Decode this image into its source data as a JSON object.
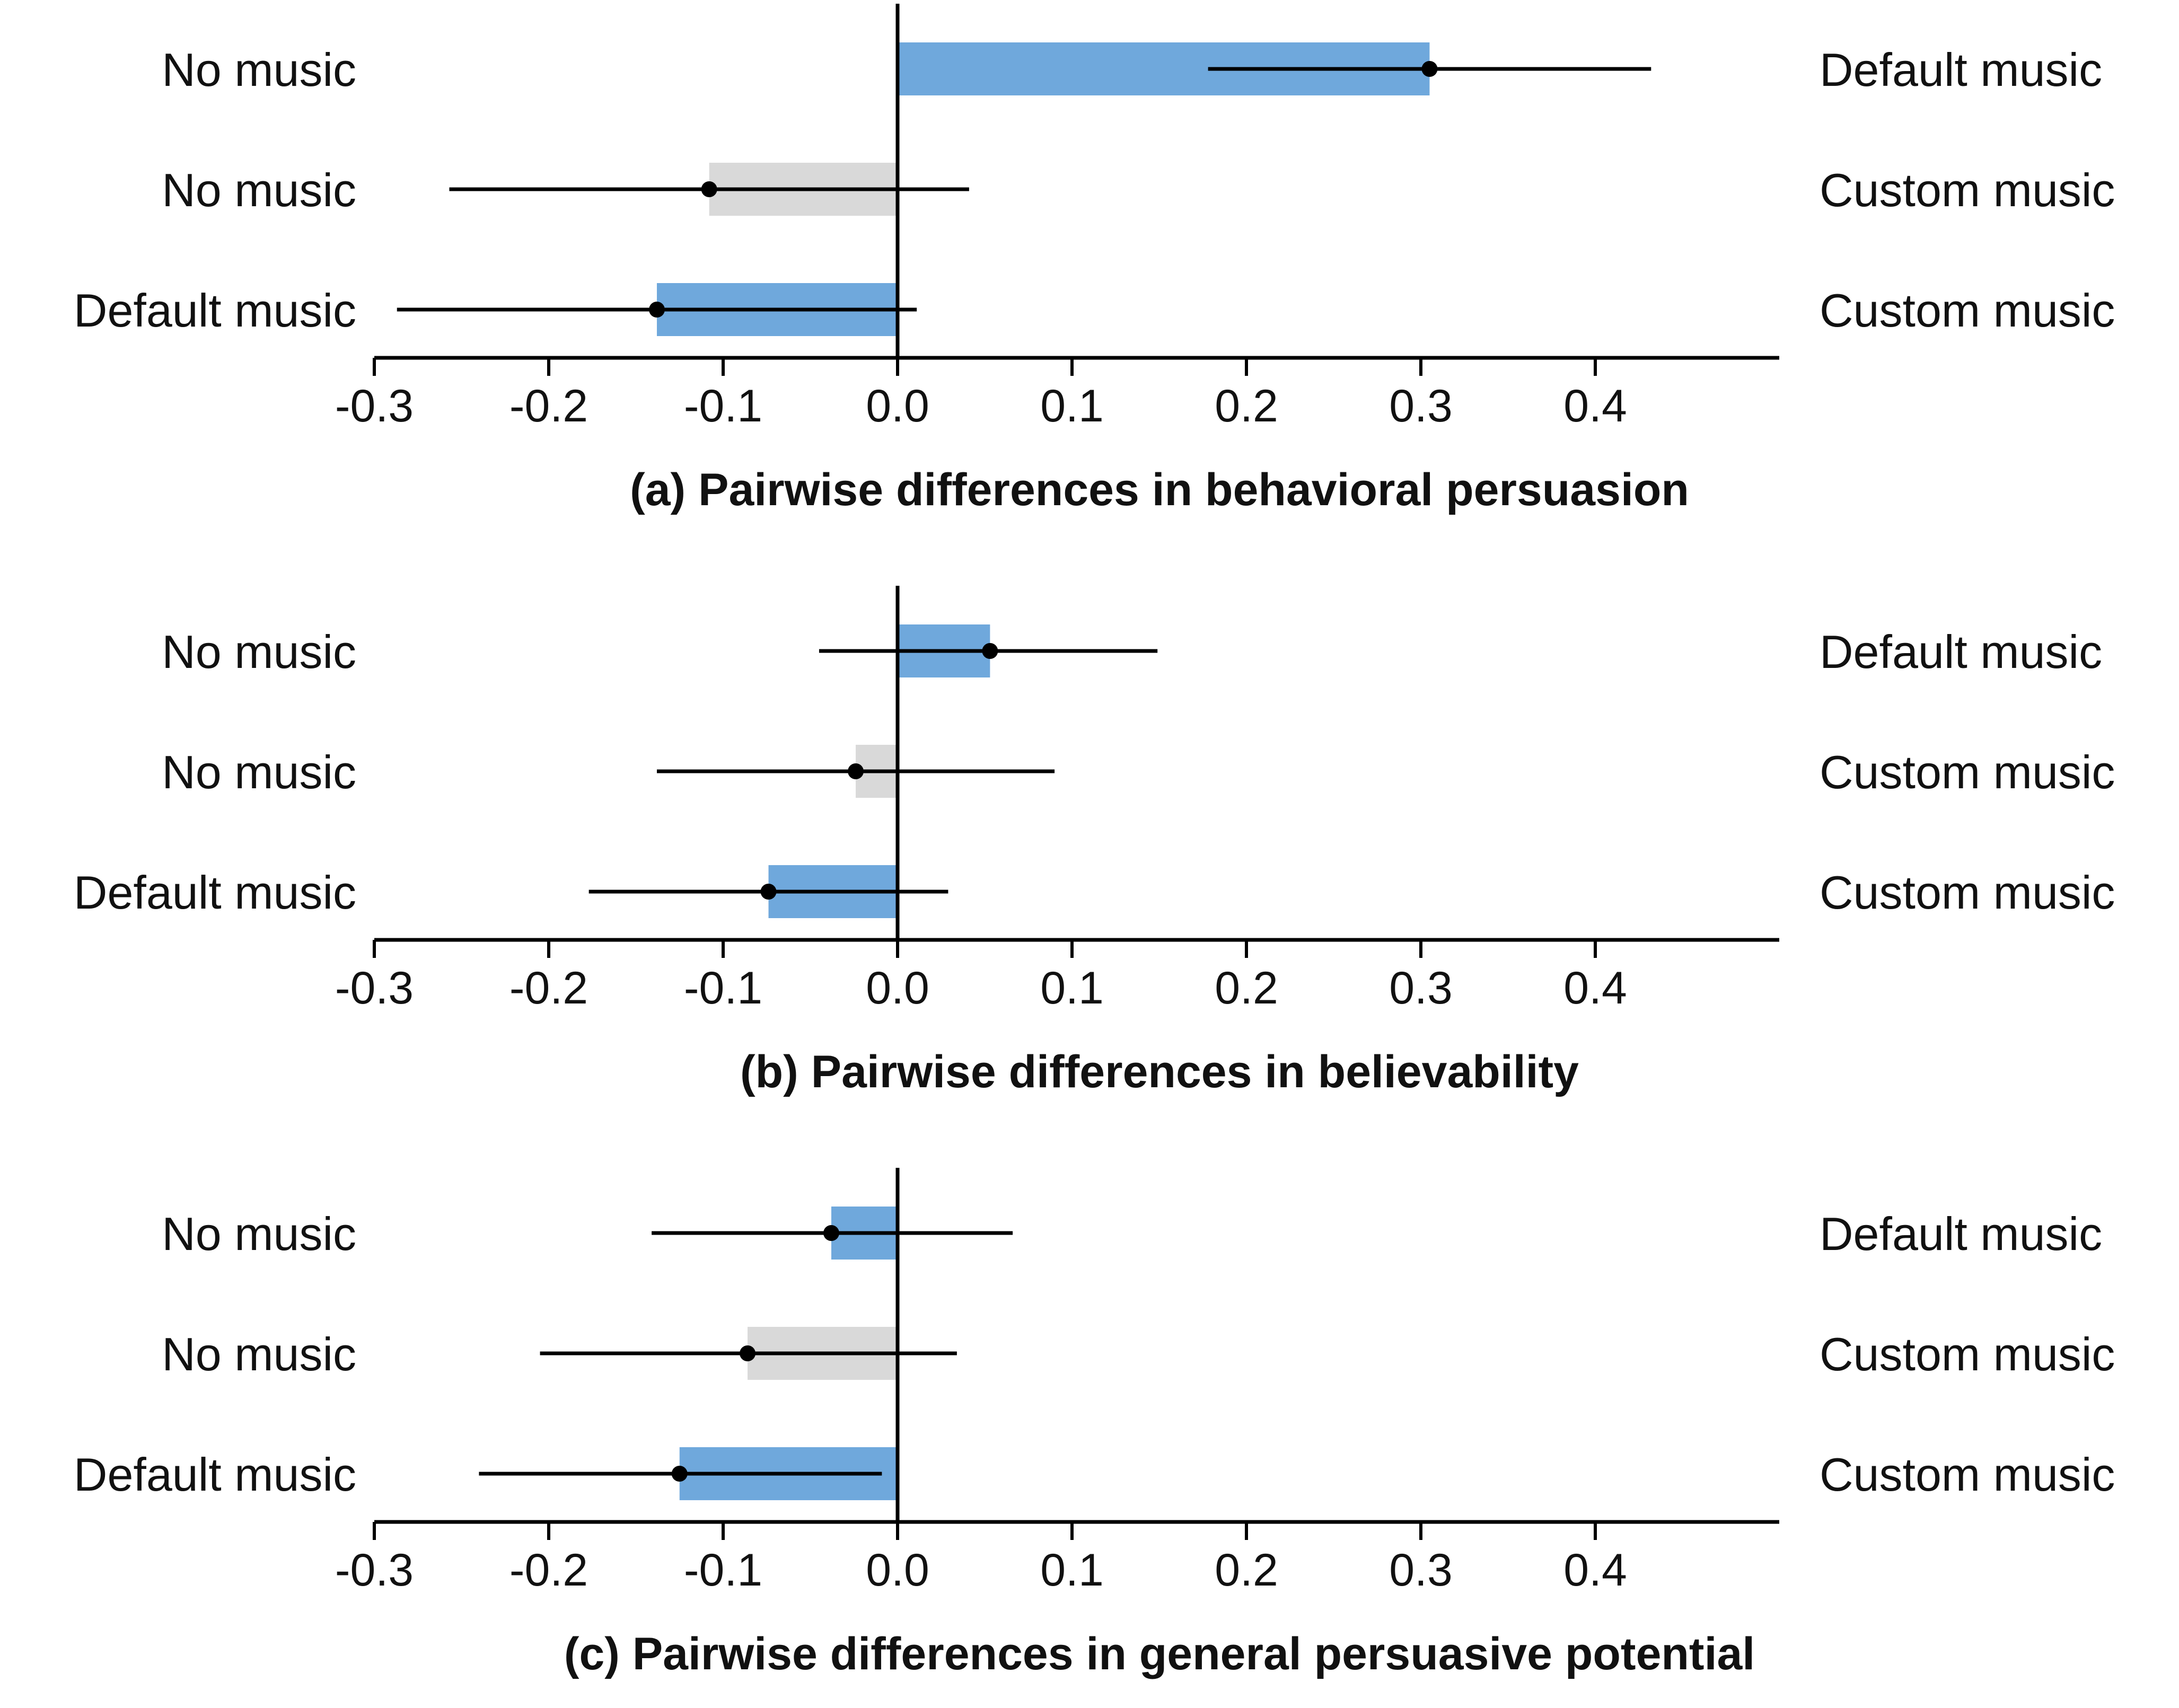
{
  "chart_data": [
    {
      "type": "bar",
      "orientation": "horizontal",
      "title": "(a) Pairwise differences in behavioral persuasion",
      "xlim": [
        -0.3,
        0.5
      ],
      "xticks": [
        "-0.3",
        "-0.2",
        "-0.1",
        "0.0",
        "0.1",
        "0.2",
        "0.3",
        "0.4"
      ],
      "rows": [
        {
          "left": "No music",
          "right": "Default music",
          "value": 0.305,
          "ci_low": 0.178,
          "ci_high": 0.432,
          "color": "#6fa8dc"
        },
        {
          "left": "No music",
          "right": "Custom music",
          "value": -0.108,
          "ci_low": -0.257,
          "ci_high": 0.041,
          "color": "#d9d9d9"
        },
        {
          "left": "Default music",
          "right": "Custom music",
          "value": -0.138,
          "ci_low": -0.287,
          "ci_high": 0.011,
          "color": "#6fa8dc"
        }
      ]
    },
    {
      "type": "bar",
      "orientation": "horizontal",
      "title": "(b) Pairwise differences in believability",
      "xlim": [
        -0.3,
        0.5
      ],
      "xticks": [
        "-0.3",
        "-0.2",
        "-0.1",
        "0.0",
        "0.1",
        "0.2",
        "0.3",
        "0.4"
      ],
      "rows": [
        {
          "left": "No music",
          "right": "Default music",
          "value": 0.053,
          "ci_low": -0.045,
          "ci_high": 0.149,
          "color": "#6fa8dc"
        },
        {
          "left": "No music",
          "right": "Custom music",
          "value": -0.024,
          "ci_low": -0.138,
          "ci_high": 0.09,
          "color": "#d9d9d9"
        },
        {
          "left": "Default music",
          "right": "Custom music",
          "value": -0.074,
          "ci_low": -0.177,
          "ci_high": 0.029,
          "color": "#6fa8dc"
        }
      ]
    },
    {
      "type": "bar",
      "orientation": "horizontal",
      "title": "(c) Pairwise differences in general persuasive potential",
      "xlim": [
        -0.3,
        0.5
      ],
      "xticks": [
        "-0.3",
        "-0.2",
        "-0.1",
        "0.0",
        "0.1",
        "0.2",
        "0.3",
        "0.4"
      ],
      "rows": [
        {
          "left": "No music",
          "right": "Default music",
          "value": -0.038,
          "ci_low": -0.141,
          "ci_high": 0.066,
          "color": "#6fa8dc"
        },
        {
          "left": "No music",
          "right": "Custom music",
          "value": -0.086,
          "ci_low": -0.205,
          "ci_high": 0.034,
          "color": "#d9d9d9"
        },
        {
          "left": "Default music",
          "right": "Custom music",
          "value": -0.125,
          "ci_low": -0.24,
          "ci_high": -0.009,
          "color": "#6fa8dc"
        }
      ]
    }
  ]
}
